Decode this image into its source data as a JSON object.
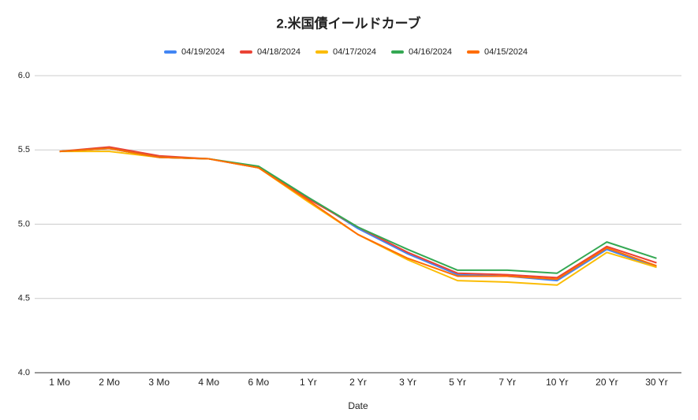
{
  "chart_data": {
    "type": "line",
    "title": "2.米国債イールドカーブ",
    "x_label": "Date",
    "categories": [
      "1 Mo",
      "2 Mo",
      "3 Mo",
      "4 Mo",
      "6 Mo",
      "1 Yr",
      "2 Yr",
      "3 Yr",
      "5 Yr",
      "7 Yr",
      "10 Yr",
      "20 Yr",
      "30 Yr"
    ],
    "series": [
      {
        "name": "04/19/2024",
        "color": "#4285f4",
        "values": [
          5.49,
          5.51,
          5.45,
          5.44,
          5.38,
          5.18,
          4.97,
          4.8,
          4.66,
          4.65,
          4.62,
          4.83,
          4.71
        ]
      },
      {
        "name": "04/18/2024",
        "color": "#ea4335",
        "values": [
          5.49,
          5.52,
          5.46,
          5.44,
          5.38,
          5.17,
          4.98,
          4.81,
          4.67,
          4.66,
          4.64,
          4.85,
          4.74
        ]
      },
      {
        "name": "04/17/2024",
        "color": "#fbbc04",
        "values": [
          5.49,
          5.49,
          5.45,
          5.44,
          5.38,
          5.15,
          4.93,
          4.76,
          4.62,
          4.61,
          4.59,
          4.81,
          4.71
        ]
      },
      {
        "name": "04/16/2024",
        "color": "#34a853",
        "values": [
          5.49,
          5.51,
          5.45,
          5.44,
          5.39,
          5.18,
          4.98,
          4.83,
          4.69,
          4.69,
          4.67,
          4.88,
          4.77
        ]
      },
      {
        "name": "04/15/2024",
        "color": "#ff6d01",
        "values": [
          5.49,
          5.51,
          5.45,
          5.44,
          5.38,
          5.16,
          4.93,
          4.77,
          4.65,
          4.65,
          4.63,
          4.84,
          4.72
        ]
      }
    ],
    "ylim": [
      4.0,
      6.0
    ],
    "yticks": [
      {
        "value": 4.0,
        "label": "4.0"
      },
      4.5,
      {
        "value": 5.0,
        "label": "5.0"
      },
      5.5,
      {
        "value": 6.0,
        "label": "6.0"
      }
    ],
    "grid": true,
    "legend": "top"
  }
}
